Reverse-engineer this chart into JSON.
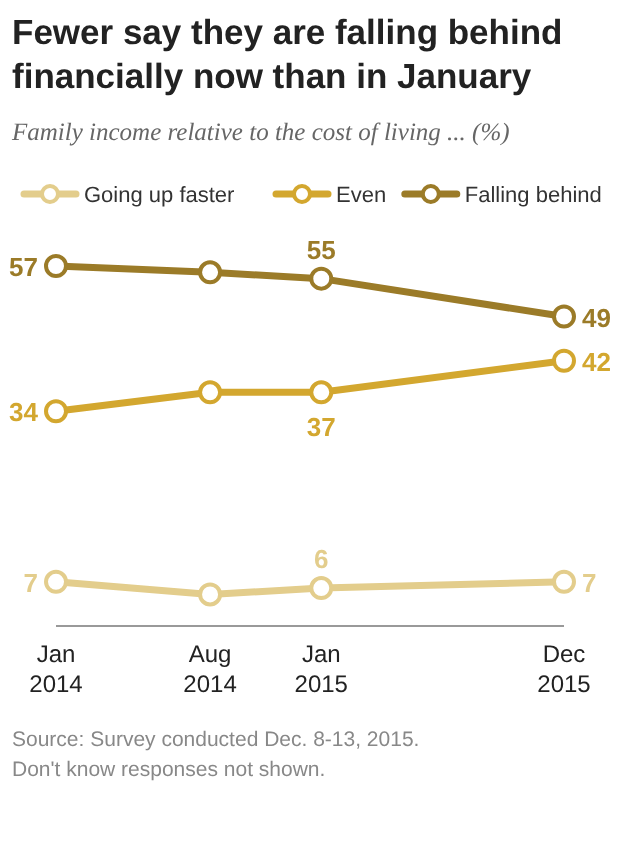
{
  "chart_data": {
    "type": "line",
    "title": "Fewer say they are falling behind financially now than in January",
    "subtitle": "Family income relative to the cost of living ... (%)",
    "x": [
      "2014-01",
      "2014-08",
      "2015-01",
      "2015-12"
    ],
    "xlim": [
      "2014-01",
      "2015-12"
    ],
    "xticks": [
      {
        "value": "2014-01",
        "label": "Jan 2014"
      },
      {
        "value": "2014-08",
        "label": "Aug 2014"
      },
      {
        "value": "2015-01",
        "label": "Jan 2015"
      },
      {
        "value": "2015-12",
        "label": "Dec 2015"
      }
    ],
    "tick_labels": "x",
    "series": [
      {
        "name": "Going up faster",
        "color": "#e3cd8c",
        "values": [
          7,
          5,
          6,
          7
        ],
        "value_labels": [
          "7",
          null,
          "6",
          "7"
        ]
      },
      {
        "name": "Even",
        "color": "#d3a72f",
        "values": [
          34,
          37,
          37,
          42
        ],
        "value_labels": [
          "34",
          null,
          "37",
          "42"
        ]
      },
      {
        "name": "Falling behind",
        "color": "#9b7b28",
        "values": [
          57,
          56,
          55,
          49
        ],
        "value_labels": [
          "57",
          null,
          "55",
          "49"
        ]
      }
    ],
    "marker": "circle",
    "line_style": "solid",
    "legend": "top",
    "annotations": [
      "Source: Survey conducted Dec. 8-13, 2015.",
      "Don't know responses not shown."
    ]
  }
}
